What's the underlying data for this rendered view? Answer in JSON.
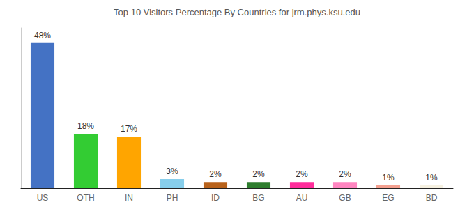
{
  "chart_data": {
    "type": "bar",
    "title": "Top 10 Visitors Percentage By Countries for jrm.phys.ksu.edu",
    "categories": [
      "US",
      "OTH",
      "IN",
      "PH",
      "ID",
      "BG",
      "AU",
      "GB",
      "EG",
      "BD"
    ],
    "values": [
      48,
      18,
      17,
      3,
      2,
      2,
      2,
      2,
      1,
      1
    ],
    "value_labels": [
      "48%",
      "18%",
      "17%",
      "3%",
      "2%",
      "2%",
      "2%",
      "2%",
      "1%",
      "1%"
    ],
    "data_labels": true,
    "colors": [
      "#4472c4",
      "#33cc33",
      "#ffa500",
      "#87ceeb",
      "#b8621b",
      "#2e7d2e",
      "#ff2d9b",
      "#ff85c0",
      "#f4a090",
      "#f5f0e0"
    ],
    "ylim": [
      0,
      53
    ],
    "grid": false,
    "tick_labels": "x"
  }
}
